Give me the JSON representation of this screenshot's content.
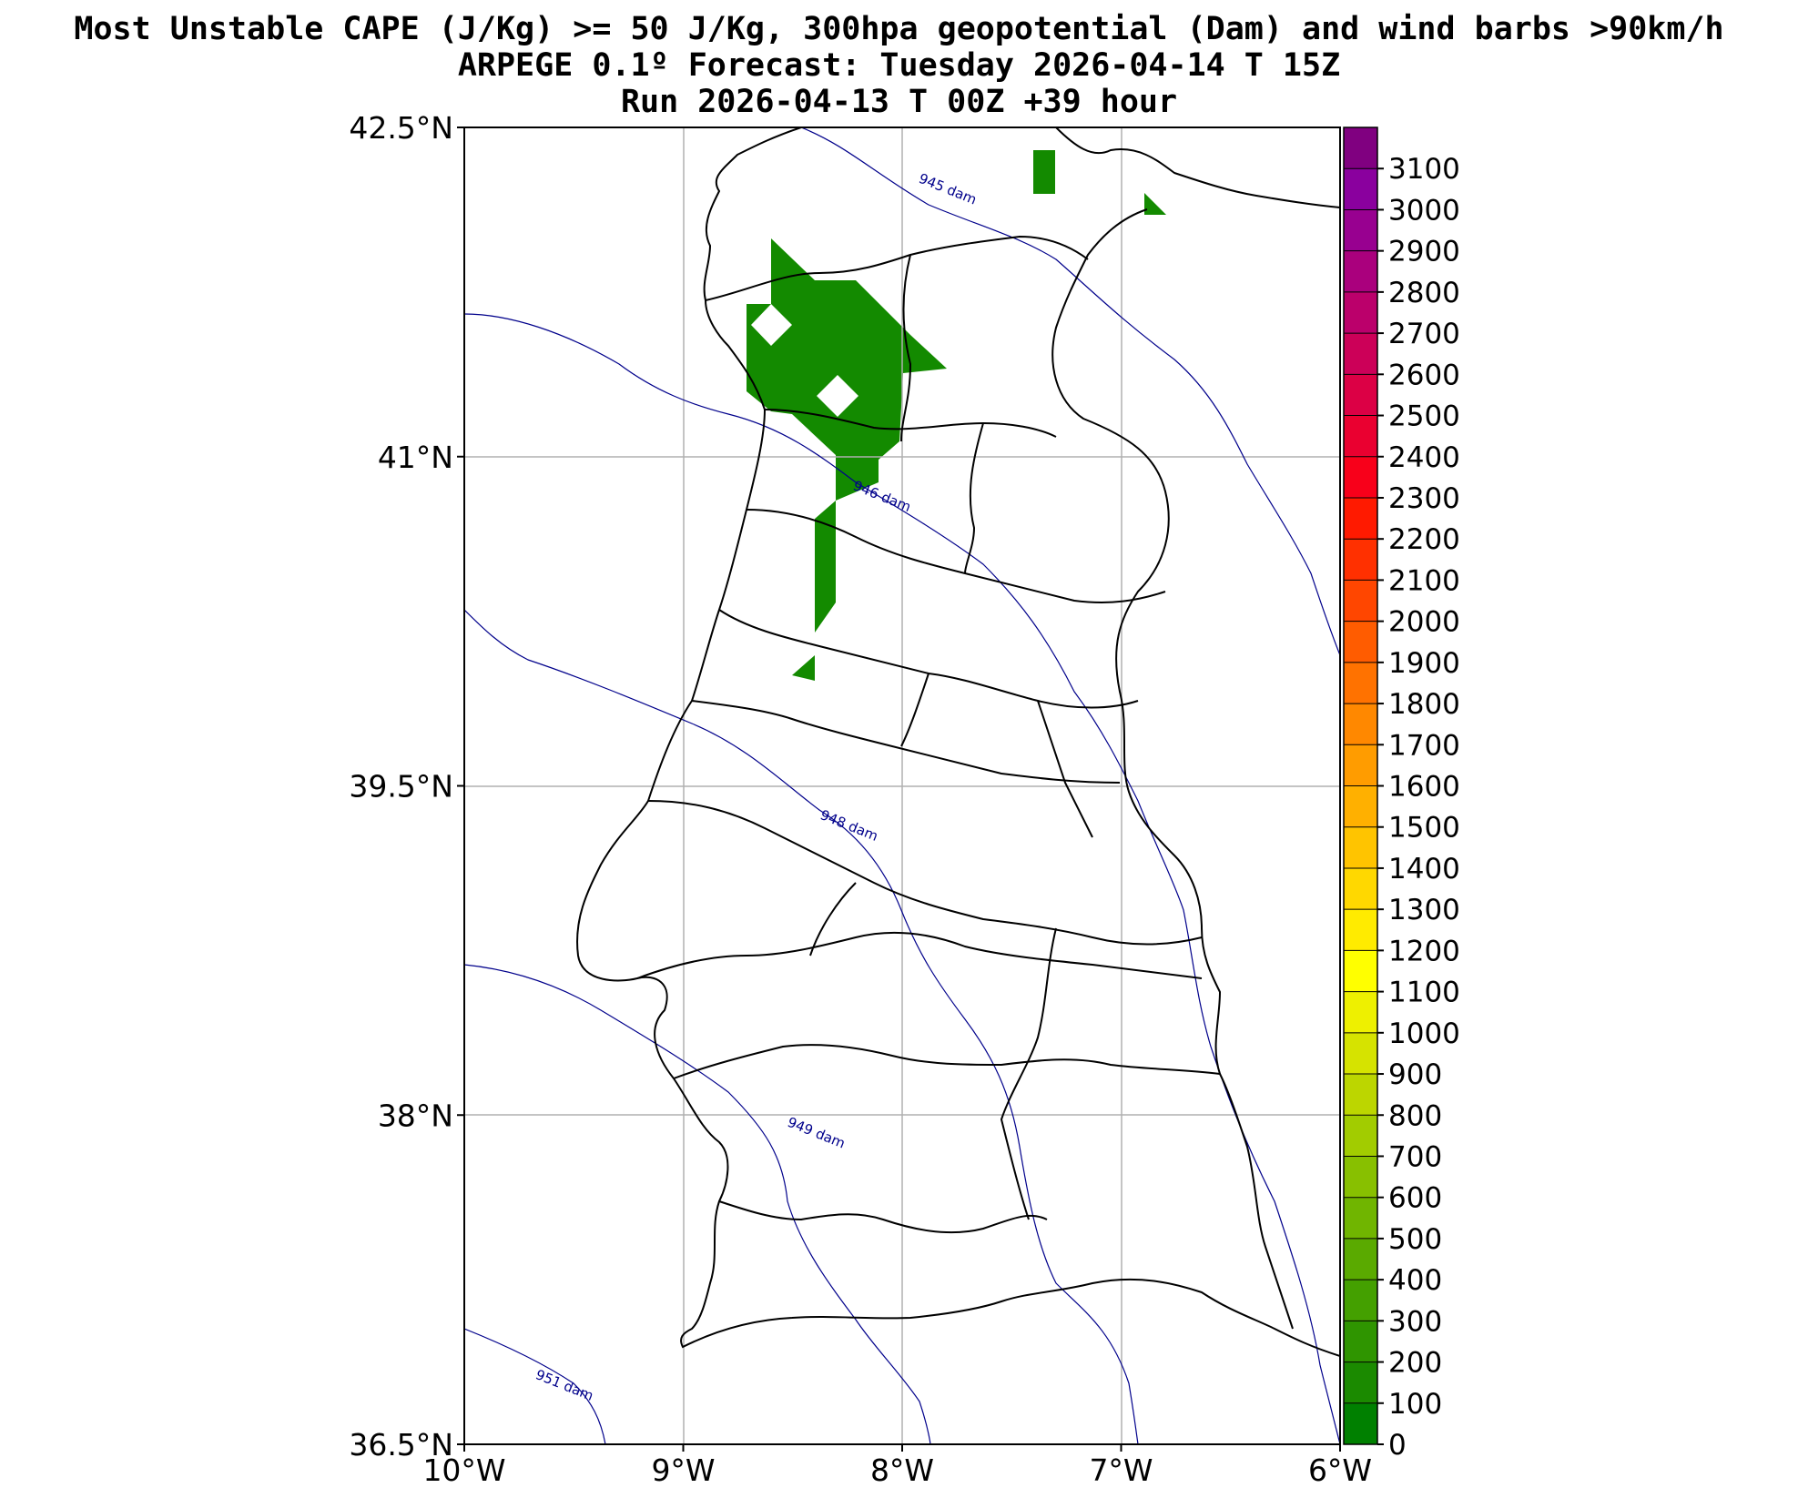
{
  "title": {
    "line1": "Most Unstable CAPE (J/Kg) >= 50 J/Kg, 300hpa geopotential (Dam) and wind barbs >90km/h",
    "line2": "ARPEGE 0.1º Forecast: Tuesday 2026-04-14 T 15Z",
    "line3": "Run 2026-04-13 T 00Z +39 hour"
  },
  "map": {
    "lon_range": [
      -10,
      -6
    ],
    "lat_range": [
      36.5,
      42.5
    ],
    "grid": true,
    "lat_ticks": [
      {
        "value": 42.5,
        "label": "42.5°N"
      },
      {
        "value": 41,
        "label": "41°N"
      },
      {
        "value": 39.5,
        "label": "39.5°N"
      },
      {
        "value": 38,
        "label": "38°N"
      },
      {
        "value": 36.5,
        "label": "36.5°N"
      }
    ],
    "lon_ticks": [
      {
        "value": -10,
        "label": "10°W"
      },
      {
        "value": -9,
        "label": "9°W"
      },
      {
        "value": -8,
        "label": "8°W"
      },
      {
        "value": -7,
        "label": "7°W"
      },
      {
        "value": -6,
        "label": "6°W"
      }
    ],
    "contour_color": "#00008b",
    "contour_labels": [
      {
        "label": "945 dam",
        "lon": -7.8,
        "lat": 42.2
      },
      {
        "label": "946 dam",
        "lon": -8.1,
        "lat": 40.8
      },
      {
        "label": "948 dam",
        "lon": -8.25,
        "lat": 39.3
      },
      {
        "label": "949 dam",
        "lon": -8.4,
        "lat": 37.9
      },
      {
        "label": "951 dam",
        "lon": -9.55,
        "lat": 36.75
      }
    ]
  },
  "colorbar": {
    "min": 0,
    "max": 3200,
    "ticks": [
      0,
      100,
      200,
      300,
      400,
      500,
      600,
      700,
      800,
      900,
      1000,
      1100,
      1200,
      1300,
      1400,
      1500,
      1600,
      1700,
      1800,
      1900,
      2000,
      2100,
      2200,
      2300,
      2400,
      2500,
      2600,
      2700,
      2800,
      2900,
      3000,
      3100
    ],
    "colors": [
      "#008000",
      "#1b8a00",
      "#2f9500",
      "#44a000",
      "#5aaa00",
      "#70b500",
      "#88c000",
      "#a2cc00",
      "#bcd600",
      "#d6e300",
      "#eef000",
      "#ffff00",
      "#ffeb00",
      "#ffd800",
      "#ffc400",
      "#ffb000",
      "#ff9c00",
      "#ff8800",
      "#ff7200",
      "#ff5c00",
      "#ff4600",
      "#ff3000",
      "#ff1a00",
      "#f8001a",
      "#ea0030",
      "#dc0045",
      "#cc0058",
      "#bb006b",
      "#aa007d",
      "#980090",
      "#8a009e",
      "#800080"
    ]
  }
}
